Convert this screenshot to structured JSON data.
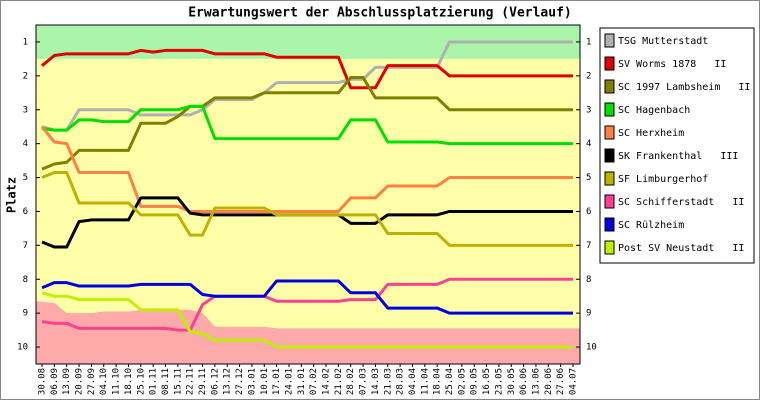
{
  "chart_data": {
    "type": "line",
    "title": "Erwartungswert der Abschlussplatzierung (Verlauf)",
    "y_label": "Platz",
    "inverted": true,
    "ylim": [
      0.5,
      10.5
    ],
    "yticks": [
      1,
      2,
      3,
      4,
      5,
      6,
      7,
      8,
      9,
      10
    ],
    "zones": [
      {
        "from": 0.5,
        "to": 1.5,
        "color": "#aaf5aa"
      },
      {
        "from": 1.5,
        "to": 10.5,
        "color": "#ffffaa"
      }
    ],
    "lower_area": {
      "color": "#ffaaaa",
      "values": [
        8.65,
        8.7,
        9.0,
        9.0,
        9.0,
        8.95,
        8.95,
        8.95,
        8.9,
        8.9,
        8.9,
        8.9,
        8.9,
        9.0,
        9.4,
        9.4,
        9.4,
        9.4,
        9.4,
        9.45,
        9.45,
        9.45,
        9.45,
        9.45,
        9.45,
        9.45,
        9.45,
        9.45,
        9.45,
        9.45,
        9.45,
        9.45,
        9.45,
        9.45,
        9.45,
        9.45,
        9.45,
        9.45,
        9.45,
        9.45,
        9.45,
        9.45,
        9.45,
        9.45
      ]
    },
    "categories": [
      "30.08",
      "06.09",
      "13.09",
      "20.09",
      "27.09",
      "04.10",
      "11.10",
      "18.10",
      "25.10",
      "01.11",
      "08.11",
      "15.11",
      "22.11",
      "29.11",
      "06.12",
      "13.12",
      "27.12",
      "03.01",
      "10.01",
      "17.01",
      "24.01",
      "31.01",
      "07.02",
      "14.02",
      "21.02",
      "28.02",
      "07.03",
      "14.03",
      "21.03",
      "28.03",
      "04.04",
      "11.04",
      "18.04",
      "25.04",
      "02.05",
      "09.05",
      "16.05",
      "23.05",
      "30.05",
      "06.06",
      "13.06",
      "20.06",
      "27.06",
      "04.07"
    ],
    "series": [
      {
        "name": "TSG Mutterstadt",
        "color": "#b0b0b0",
        "values": [
          3.5,
          3.6,
          3.6,
          3.0,
          3.0,
          3.0,
          3.0,
          3.0,
          3.15,
          3.15,
          3.15,
          3.15,
          3.15,
          3.0,
          2.7,
          2.7,
          2.7,
          2.7,
          2.5,
          2.2,
          2.2,
          2.2,
          2.2,
          2.2,
          2.2,
          2.1,
          2.1,
          1.75,
          1.75,
          1.75,
          1.75,
          1.75,
          1.75,
          1.0,
          1.0,
          1.0,
          1.0,
          1.0,
          1.0,
          1.0,
          1.0,
          1.0,
          1.0,
          1.0
        ]
      },
      {
        "name": "SV Worms 1878   II",
        "color": "#e00000",
        "values": [
          1.7,
          1.4,
          1.35,
          1.35,
          1.35,
          1.35,
          1.35,
          1.35,
          1.25,
          1.3,
          1.25,
          1.25,
          1.25,
          1.25,
          1.35,
          1.35,
          1.35,
          1.35,
          1.35,
          1.45,
          1.45,
          1.45,
          1.45,
          1.45,
          1.45,
          2.35,
          2.35,
          2.35,
          1.7,
          1.7,
          1.7,
          1.7,
          1.7,
          2.0,
          2.0,
          2.0,
          2.0,
          2.0,
          2.0,
          2.0,
          2.0,
          2.0,
          2.0,
          2.0
        ]
      },
      {
        "name": "SC 1997 Lambsheim   II",
        "color": "#808000",
        "values": [
          4.75,
          4.6,
          4.55,
          4.2,
          4.2,
          4.2,
          4.2,
          4.2,
          3.4,
          3.4,
          3.4,
          3.2,
          2.9,
          2.9,
          2.65,
          2.65,
          2.65,
          2.65,
          2.5,
          2.5,
          2.5,
          2.5,
          2.5,
          2.5,
          2.5,
          2.05,
          2.05,
          2.65,
          2.65,
          2.65,
          2.65,
          2.65,
          2.65,
          3.0,
          3.0,
          3.0,
          3.0,
          3.0,
          3.0,
          3.0,
          3.0,
          3.0,
          3.0,
          3.0
        ]
      },
      {
        "name": "SC Hagenbach",
        "color": "#00e000",
        "values": [
          3.55,
          3.6,
          3.6,
          3.3,
          3.3,
          3.35,
          3.35,
          3.35,
          3.0,
          3.0,
          3.0,
          3.0,
          2.9,
          2.9,
          3.85,
          3.85,
          3.85,
          3.85,
          3.85,
          3.85,
          3.85,
          3.85,
          3.85,
          3.85,
          3.85,
          3.3,
          3.3,
          3.3,
          3.95,
          3.95,
          3.95,
          3.95,
          3.95,
          4.0,
          4.0,
          4.0,
          4.0,
          4.0,
          4.0,
          4.0,
          4.0,
          4.0,
          4.0,
          4.0
        ]
      },
      {
        "name": "SC Herxheim",
        "color": "#ff8040",
        "values": [
          3.5,
          3.95,
          4.0,
          4.85,
          4.85,
          4.85,
          4.85,
          4.85,
          5.85,
          5.85,
          5.85,
          5.85,
          6.0,
          6.0,
          6.0,
          6.0,
          6.0,
          6.0,
          6.0,
          6.0,
          6.0,
          6.0,
          6.0,
          6.0,
          6.0,
          5.6,
          5.6,
          5.6,
          5.25,
          5.25,
          5.25,
          5.25,
          5.25,
          5.0,
          5.0,
          5.0,
          5.0,
          5.0,
          5.0,
          5.0,
          5.0,
          5.0,
          5.0,
          5.0
        ]
      },
      {
        "name": "SK Frankenthal   III",
        "color": "#000000",
        "values": [
          6.9,
          7.05,
          7.05,
          6.3,
          6.25,
          6.25,
          6.25,
          6.25,
          5.6,
          5.6,
          5.6,
          5.6,
          6.05,
          6.1,
          6.1,
          6.1,
          6.1,
          6.1,
          6.1,
          6.1,
          6.1,
          6.1,
          6.1,
          6.1,
          6.1,
          6.35,
          6.35,
          6.35,
          6.1,
          6.1,
          6.1,
          6.1,
          6.1,
          6.0,
          6.0,
          6.0,
          6.0,
          6.0,
          6.0,
          6.0,
          6.0,
          6.0,
          6.0,
          6.0
        ]
      },
      {
        "name": "SF Limburgerhof",
        "color": "#c0b000",
        "values": [
          5.0,
          4.85,
          4.85,
          5.75,
          5.75,
          5.75,
          5.75,
          5.75,
          6.1,
          6.1,
          6.1,
          6.1,
          6.7,
          6.7,
          5.9,
          5.9,
          5.9,
          5.9,
          5.9,
          6.1,
          6.1,
          6.1,
          6.1,
          6.1,
          6.1,
          6.1,
          6.1,
          6.1,
          6.65,
          6.65,
          6.65,
          6.65,
          6.65,
          7.0,
          7.0,
          7.0,
          7.0,
          7.0,
          7.0,
          7.0,
          7.0,
          7.0,
          7.0,
          7.0
        ]
      },
      {
        "name": "SC Schifferstadt   II",
        "color": "#ff4090",
        "values": [
          9.25,
          9.3,
          9.3,
          9.45,
          9.45,
          9.45,
          9.45,
          9.45,
          9.45,
          9.45,
          9.45,
          9.5,
          9.5,
          8.75,
          8.5,
          8.5,
          8.5,
          8.5,
          8.5,
          8.65,
          8.65,
          8.65,
          8.65,
          8.65,
          8.65,
          8.6,
          8.6,
          8.6,
          8.15,
          8.15,
          8.15,
          8.15,
          8.15,
          8.0,
          8.0,
          8.0,
          8.0,
          8.0,
          8.0,
          8.0,
          8.0,
          8.0,
          8.0,
          8.0
        ]
      },
      {
        "name": "SC Rülzheim",
        "color": "#0000e0",
        "values": [
          8.25,
          8.1,
          8.1,
          8.2,
          8.2,
          8.2,
          8.2,
          8.2,
          8.15,
          8.15,
          8.15,
          8.15,
          8.15,
          8.45,
          8.5,
          8.5,
          8.5,
          8.5,
          8.5,
          8.05,
          8.05,
          8.05,
          8.05,
          8.05,
          8.05,
          8.4,
          8.4,
          8.4,
          8.85,
          8.85,
          8.85,
          8.85,
          8.85,
          9.0,
          9.0,
          9.0,
          9.0,
          9.0,
          9.0,
          9.0,
          9.0,
          9.0,
          9.0,
          9.0
        ]
      },
      {
        "name": "Post SV Neustadt   II",
        "color": "#c0f000",
        "values": [
          8.4,
          8.5,
          8.5,
          8.6,
          8.6,
          8.6,
          8.6,
          8.6,
          8.9,
          8.9,
          8.9,
          8.9,
          9.55,
          9.6,
          9.8,
          9.8,
          9.8,
          9.8,
          9.8,
          10.0,
          10.0,
          10.0,
          10.0,
          10.0,
          10.0,
          10.0,
          10.0,
          10.0,
          10.0,
          10.0,
          10.0,
          10.0,
          10.0,
          10.0,
          10.0,
          10.0,
          10.0,
          10.0,
          10.0,
          10.0,
          10.0,
          10.0,
          10.0,
          10.0
        ]
      }
    ]
  }
}
